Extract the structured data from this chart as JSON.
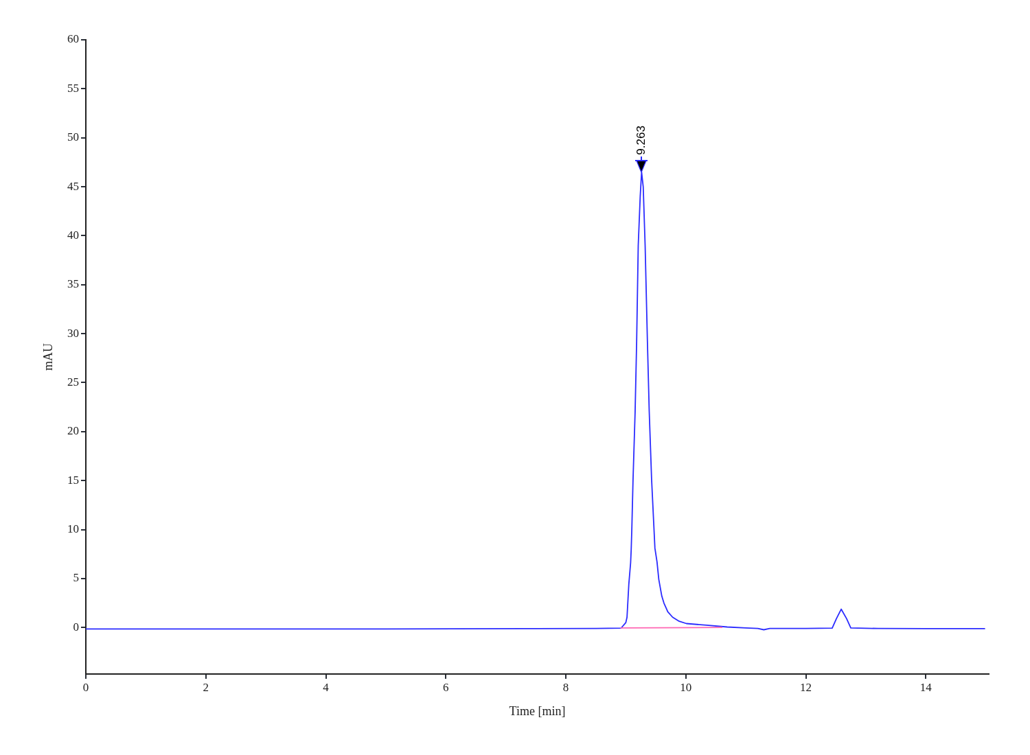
{
  "chart_data": {
    "type": "line",
    "xlabel": "Time [min]",
    "ylabel": "mAU",
    "xlim": [
      0,
      15.05
    ],
    "ylim": [
      -4.75,
      60
    ],
    "xticks": [
      0,
      2,
      4,
      6,
      8,
      10,
      12,
      14
    ],
    "yticks": [
      0,
      5,
      10,
      15,
      20,
      25,
      30,
      35,
      40,
      45,
      50,
      55,
      60
    ],
    "annotations": [
      {
        "text": "9.263",
        "x": 9.263,
        "y": 46.5
      }
    ],
    "series": [
      {
        "color": "#2b2bff",
        "x": [
          0,
          5,
          7.5,
          8.5,
          8.92,
          9.0,
          9.02,
          9.05,
          9.08,
          9.09,
          9.1,
          9.12,
          9.155,
          9.18,
          9.207,
          9.24,
          9.263,
          9.29,
          9.322,
          9.36,
          9.39,
          9.43,
          9.485,
          9.52,
          9.55,
          9.6,
          9.635,
          9.7,
          9.78,
          9.89,
          10.01,
          10.35,
          10.69,
          11.0,
          11.2,
          11.3,
          11.4,
          12.0,
          12.44,
          12.51,
          12.59,
          12.68,
          12.75,
          13.2,
          14.0,
          14.98
        ],
        "values": [
          -0.15,
          -0.15,
          -0.12,
          -0.1,
          -0.07,
          0.5,
          1.05,
          4.4,
          6.6,
          8.0,
          10.0,
          15.0,
          22.0,
          29.0,
          39.0,
          44.0,
          46.5,
          45.0,
          39.0,
          29.2,
          22.1,
          15.1,
          8.1,
          6.7,
          4.9,
          3.2,
          2.5,
          1.6,
          1.05,
          0.63,
          0.4,
          0.23,
          0.05,
          -0.05,
          -0.1,
          -0.23,
          -0.1,
          -0.1,
          -0.07,
          0.9,
          1.87,
          0.9,
          -0.05,
          -0.1,
          -0.12,
          -0.12
        ]
      },
      {
        "color": "#ff66b3",
        "x": [
          8.92,
          10.6
        ],
        "values": [
          -0.05,
          0.0
        ]
      }
    ]
  }
}
